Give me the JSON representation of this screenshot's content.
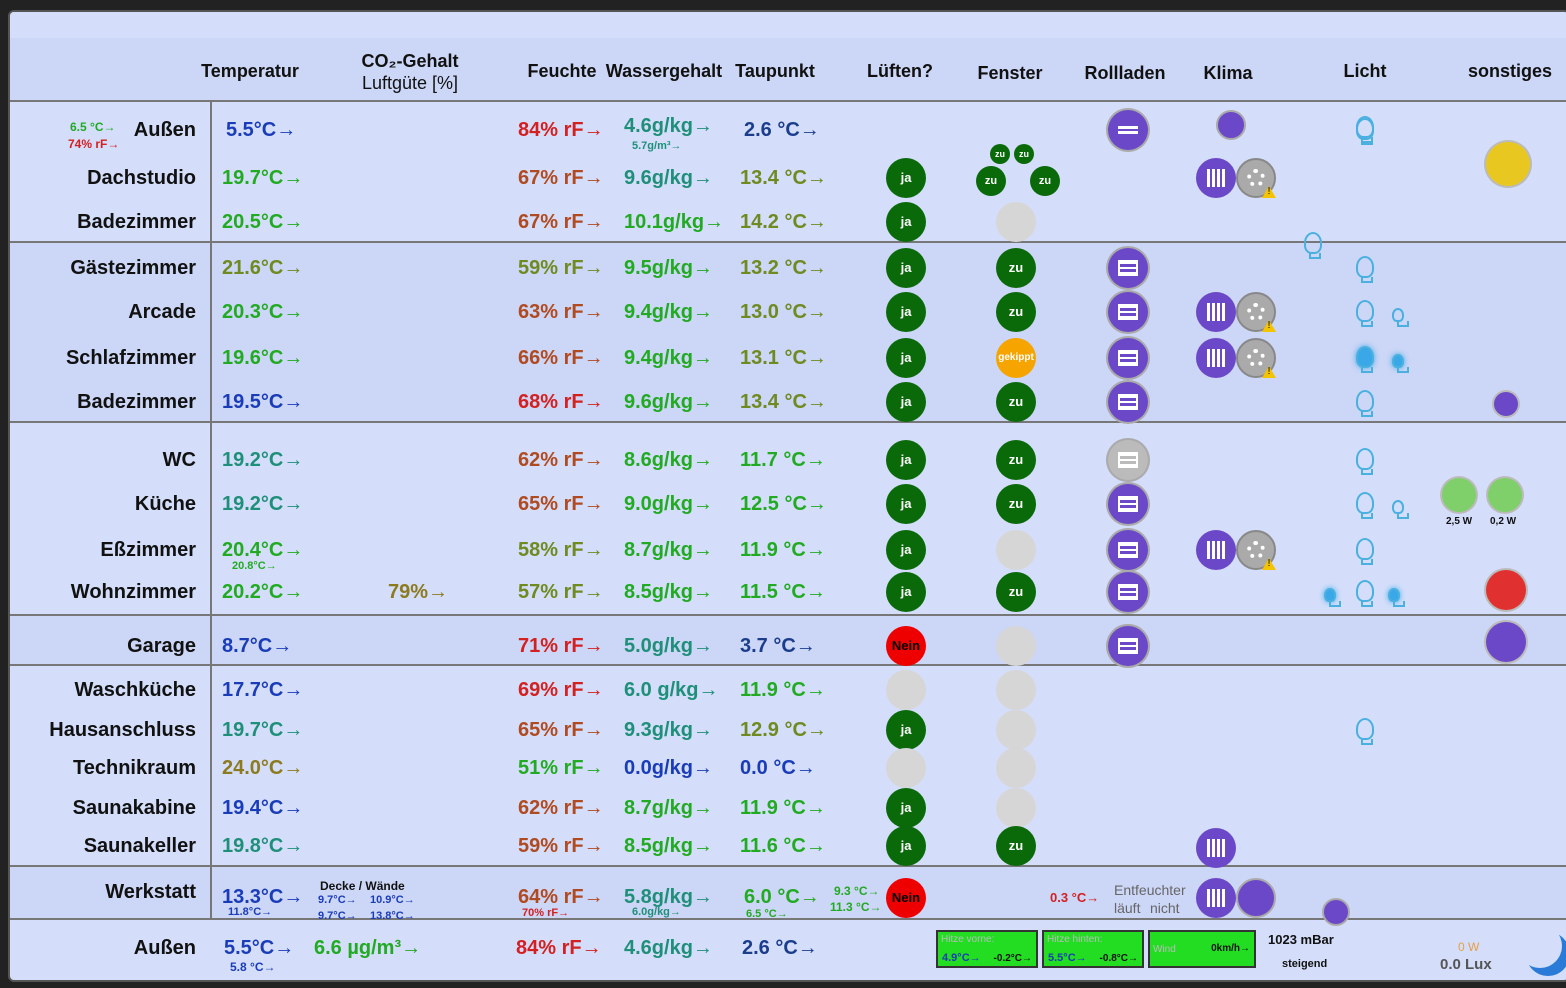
{
  "headers": {
    "temperatur": "Temperatur",
    "co2_line1": "CO₂-Gehalt",
    "co2_line2": "Luftgüte [%]",
    "feuchte": "Feuchte",
    "wassergehalt": "Wassergehalt",
    "taupunkt": "Taupunkt",
    "lueften": "Lüften?",
    "fenster": "Fenster",
    "rollladen": "Rollladen",
    "klima": "Klima",
    "licht": "Licht",
    "sonstiges": "sonstiges"
  },
  "aussen_top": {
    "small_temp": "6.5 °C→",
    "small_rf": "74% rF→",
    "name": "Außen",
    "temp": "5.5°C→",
    "hum": "84% rF→",
    "water": "4.6g/kg→",
    "water_sub": "5.7g/m³→",
    "dew": "2.6 °C→"
  },
  "rooms": [
    {
      "name": "Dachstudio",
      "temp": "19.7°C→",
      "hum": "67% rF→",
      "water": "9.6g/kg→",
      "dew": "13.4 °C→",
      "lueften": "ja"
    },
    {
      "name": "Badezimmer",
      "temp": "20.5°C→",
      "hum": "67% rF→",
      "water": "10.1g/kg→",
      "dew": "14.2 °C→",
      "lueften": "ja"
    },
    {
      "name": "Gästezimmer",
      "temp": "21.6°C→",
      "hum": "59% rF→",
      "water": "9.5g/kg→",
      "dew": "13.2 °C→",
      "lueften": "ja",
      "fenster": "zu"
    },
    {
      "name": "Arcade",
      "temp": "20.3°C→",
      "hum": "63% rF→",
      "water": "9.4g/kg→",
      "dew": "13.0 °C→",
      "lueften": "ja",
      "fenster": "zu"
    },
    {
      "name": "Schlafzimmer",
      "temp": "19.6°C→",
      "hum": "66% rF→",
      "water": "9.4g/kg→",
      "dew": "13.1 °C→",
      "lueften": "ja",
      "fenster": "gekippt"
    },
    {
      "name": "Badezimmer",
      "temp": "19.5°C→",
      "hum": "68% rF→",
      "water": "9.6g/kg→",
      "dew": "13.4 °C→",
      "lueften": "ja",
      "fenster": "zu"
    },
    {
      "name": "WC",
      "temp": "19.2°C→",
      "hum": "62% rF→",
      "water": "8.6g/kg→",
      "dew": "11.7 °C→",
      "lueften": "ja",
      "fenster": "zu"
    },
    {
      "name": "Küche",
      "temp": "19.2°C→",
      "hum": "65% rF→",
      "water": "9.0g/kg→",
      "dew": "12.5 °C→",
      "lueften": "ja",
      "fenster": "zu"
    },
    {
      "name": "Eßzimmer",
      "temp": "20.4°C→",
      "temp_sub": "20.8°C→",
      "hum": "58% rF→",
      "water": "8.7g/kg→",
      "dew": "11.9 °C→",
      "lueften": "ja"
    },
    {
      "name": "Wohnzimmer",
      "temp": "20.2°C→",
      "co2": "79%→",
      "hum": "57% rF→",
      "water": "8.5g/kg→",
      "dew": "11.5 °C→",
      "lueften": "ja",
      "fenster": "zu"
    },
    {
      "name": "Garage",
      "temp": "8.7°C→",
      "hum": "71% rF→",
      "water": "5.0g/kg→",
      "dew": "3.7 °C→",
      "lueften": "Nein"
    },
    {
      "name": "Waschküche",
      "temp": "17.7°C→",
      "hum": "69% rF→",
      "water": "6.0 g/kg→",
      "dew": "11.9 °C→"
    },
    {
      "name": "Hausanschluss",
      "temp": "19.7°C→",
      "hum": "65% rF→",
      "water": "9.3g/kg→",
      "dew": "12.9 °C→",
      "lueften": "ja"
    },
    {
      "name": "Technikraum",
      "temp": "24.0°C→",
      "hum": "51% rF→",
      "water": "0.0g/kg→",
      "dew": "0.0 °C→"
    },
    {
      "name": "Saunakabine",
      "temp": "19.4°C→",
      "hum": "62% rF→",
      "water": "8.7g/kg→",
      "dew": "11.9 °C→",
      "lueften": "ja"
    },
    {
      "name": "Saunakeller",
      "temp": "19.8°C→",
      "hum": "59% rF→",
      "water": "8.5g/kg→",
      "dew": "11.6 °C→",
      "lueften": "ja",
      "fenster": "zu"
    }
  ],
  "dach_fenster": [
    "zu",
    "zu",
    "zu",
    "zu"
  ],
  "kueche_power": [
    "2,5 W",
    "0,2 W"
  ],
  "werkstatt": {
    "name": "Werkstatt",
    "temp": "13.3°C→",
    "temp_sub": "11.8°C→",
    "decke_label": "Decke / Wände",
    "d1": "9.7°C→",
    "d2": "10.9°C→",
    "d3": "9.7°C→",
    "d4": "13.8°C→",
    "hum": "64% rF→",
    "hum_sub": "70% rF→",
    "water": "5.8g/kg→",
    "water_sub": "6.0g/kg→",
    "dew": "6.0 °C→",
    "dew_sub": "6.5 °C→",
    "extra1": "9.3 °C→",
    "extra2": "11.3 °C→",
    "lueften": "Nein",
    "rtemp": "0.3 °C→",
    "entf1": "Entfeuchter",
    "entf2": "läuft",
    "entf3": "nicht"
  },
  "aussen_bottom": {
    "name": "Außen",
    "temp": "5.5°C→",
    "temp_sub": "5.8 °C→",
    "pm": "6.6 µg/m³→",
    "hum": "84% rF→",
    "water": "4.6g/kg→",
    "dew": "2.6 °C→",
    "hitze_vorne_label": "Hitze vorne:",
    "hitze_vorne_a": "4.9°C→",
    "hitze_vorne_b": "-0.2°C→",
    "hitze_hinten_label": "Hitze hinten:",
    "hitze_hinten_a": "5.5°C→",
    "hitze_hinten_b": "-0.8°C→",
    "wind_label": "Wind",
    "wind_value": "0km/h→",
    "pressure": "1023 mBar",
    "trend": "steigend",
    "power": "0 W",
    "lux": "0.0 Lux"
  }
}
